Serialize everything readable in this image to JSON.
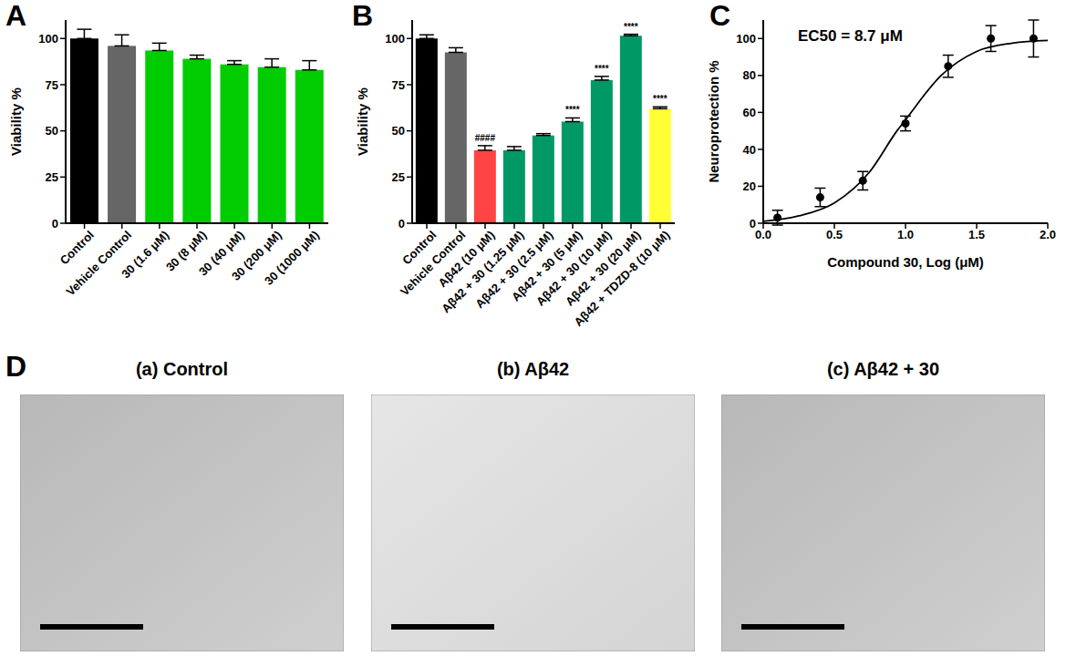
{
  "chart_data": [
    {
      "type": "bar",
      "title": "A",
      "y_label": "Viability %",
      "categories": [
        "Control",
        "Vehicle Control",
        "30 (1.6 μM)",
        "30 (8 μM)",
        "30 (40 μM)",
        "30 (200 μM)",
        "30 (1000 μM)"
      ],
      "values": [
        100,
        96,
        93.5,
        89,
        86,
        84.5,
        83
      ],
      "errors": [
        5,
        6,
        4,
        2,
        2,
        4.5,
        5
      ],
      "colors": [
        "#000000",
        "#666666",
        "#00cc00",
        "#00cc00",
        "#00cc00",
        "#00cc00",
        "#00cc00"
      ],
      "ylim": [
        0,
        110
      ],
      "yticks": [
        0,
        25,
        50,
        75,
        100
      ],
      "grid": false
    },
    {
      "type": "bar",
      "title": "B",
      "y_label": "Viability %",
      "categories": [
        "Control",
        "Vehicle Control",
        "Aβ42 (10 μM)",
        "Aβ42 + 30 (1.25 μM)",
        "Aβ42 + 30 (2.5 μM)",
        "Aβ42 + 30 (5 μM)",
        "Aβ42 + 30 (10 μM)",
        "Aβ42 + 30 (20 μM)",
        "Aβ42 + TDZD-8 (10 μM)"
      ],
      "values": [
        100,
        92.5,
        39.5,
        39.5,
        47.5,
        55,
        77.5,
        101.5,
        62
      ],
      "errors": [
        2,
        2.5,
        2.5,
        2,
        1,
        2,
        2,
        0.8,
        1
      ],
      "annotations": [
        null,
        null,
        "####",
        null,
        null,
        "****",
        "****",
        "****",
        "****"
      ],
      "colors": [
        "#000000",
        "#666666",
        "#ff4444",
        "#009966",
        "#009966",
        "#009966",
        "#009966",
        "#009966",
        "#ffff33"
      ],
      "ylim": [
        0,
        110
      ],
      "yticks": [
        0,
        25,
        50,
        75,
        100
      ],
      "grid": false
    },
    {
      "type": "scatter",
      "title": "C",
      "x_label": "Compound 30, Log (μM)",
      "y_label": "Neuroprotection %",
      "annotation": "EC50 = 8.7 μM",
      "x": [
        0.1,
        0.4,
        0.7,
        1.0,
        1.3,
        1.6,
        1.9
      ],
      "values": [
        3,
        14,
        23,
        54,
        85,
        100,
        100
      ],
      "errors": [
        4,
        5,
        5,
        4,
        6,
        7,
        10
      ],
      "fit": {
        "x": [
          0,
          0.25,
          0.5,
          0.75,
          0.94,
          1.0,
          1.25,
          1.5,
          1.75,
          2.0
        ],
        "values": [
          1,
          4,
          11,
          28,
          50,
          56,
          80,
          93,
          97.5,
          99
        ]
      },
      "color": "#000000",
      "xlim": [
        0,
        2
      ],
      "xticks": [
        {
          "value": 0,
          "label": "0.0"
        },
        0.5,
        {
          "value": 1,
          "label": "1.0"
        },
        1.5,
        {
          "value": 2,
          "label": "2.0"
        }
      ],
      "ylim": [
        0,
        110
      ],
      "yticks": [
        0,
        20,
        40,
        60,
        80,
        100
      ],
      "grid": false
    }
  ],
  "images": {
    "label": "D",
    "panels": [
      {
        "title": "(a) Control"
      },
      {
        "title": "(b) Aβ42"
      },
      {
        "title": "(c) Aβ42 + 30"
      }
    ]
  }
}
